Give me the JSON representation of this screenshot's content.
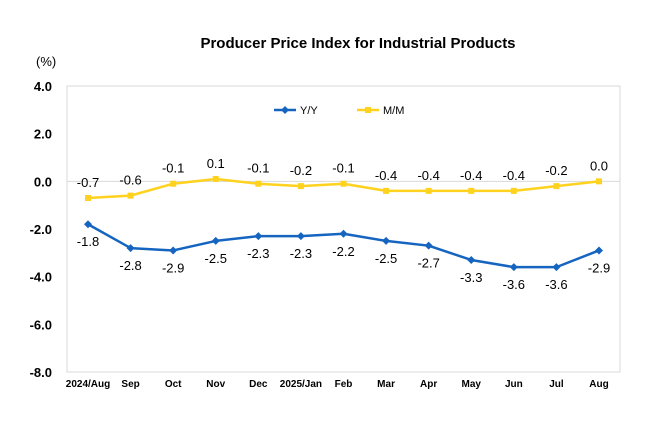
{
  "chart_data": {
    "type": "line",
    "title": "Producer Price Index for Industrial Products",
    "unit_label": "(%)",
    "categories": [
      "2024/Aug",
      "Sep",
      "Oct",
      "Nov",
      "Dec",
      "2025/Jan",
      "Feb",
      "Mar",
      "Apr",
      "May",
      "Jun",
      "Jul",
      "Aug"
    ],
    "series": [
      {
        "name": "Y/Y",
        "color": "#1565C0",
        "values": [
          -1.8,
          -2.8,
          -2.9,
          -2.5,
          -2.3,
          -2.3,
          -2.2,
          -2.5,
          -2.7,
          -3.3,
          -3.6,
          -3.6,
          -2.9
        ],
        "labels": [
          "-1.8",
          "-2.8",
          "-2.9",
          "-2.5",
          "-2.3",
          "-2.3",
          "-2.2",
          "-2.5",
          "-2.7",
          "-3.3",
          "-3.6",
          "-3.6",
          "-2.9"
        ]
      },
      {
        "name": "M/M",
        "color": "#FFD21F",
        "values": [
          -0.7,
          -0.6,
          -0.1,
          0.1,
          -0.1,
          -0.2,
          -0.1,
          -0.4,
          -0.4,
          -0.4,
          -0.4,
          -0.2,
          0.0
        ],
        "labels": [
          "-0.7",
          "-0.6",
          "-0.1",
          "0.1",
          "-0.1",
          "-0.2",
          "-0.1",
          "-0.4",
          "-0.4",
          "-0.4",
          "-0.4",
          "-0.2",
          "0.0"
        ]
      }
    ],
    "ylim": [
      -8.0,
      4.0
    ],
    "yticks": [
      "4.0",
      "2.0",
      "0.0",
      "-2.0",
      "-4.0",
      "-6.0",
      "-8.0"
    ],
    "ytick_values": [
      4,
      2,
      0,
      -2,
      -4,
      -6,
      -8
    ],
    "legend_position": "top-center",
    "grid": false
  }
}
